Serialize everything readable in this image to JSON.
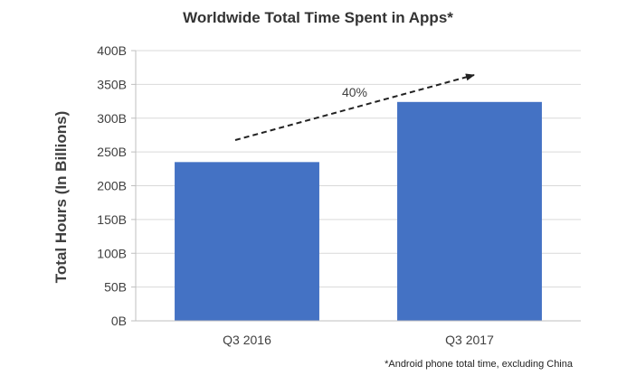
{
  "chart_data": {
    "type": "bar",
    "title": "Worldwide Total Time Spent in Apps*",
    "xlabel": "",
    "ylabel": "Total Hours (In Billions)",
    "categories": [
      "Q3 2016",
      "Q3 2017"
    ],
    "values": [
      235,
      324
    ],
    "ylim": [
      0,
      400
    ],
    "yticks": [
      "0B",
      "50B",
      "100B",
      "150B",
      "200B",
      "250B",
      "300B",
      "350B",
      "400B"
    ],
    "ytick_values": [
      0,
      50,
      100,
      150,
      200,
      250,
      300,
      350,
      400
    ],
    "grid": true,
    "bar_color": "#4472C4",
    "grid_color": "#d9d9d9",
    "annotation": "40%",
    "footnote": "*Android phone total time, excluding China"
  }
}
